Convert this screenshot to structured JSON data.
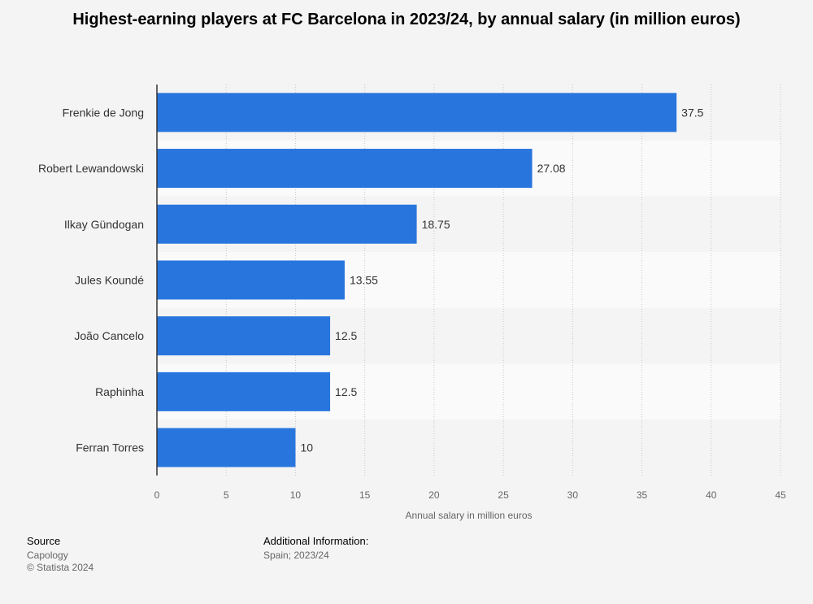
{
  "chart_data": {
    "type": "bar",
    "orientation": "horizontal",
    "title": "Highest-earning players at FC Barcelona in 2023/24, by annual salary (in million euros)",
    "xlabel": "Annual salary in million euros",
    "categories": [
      "Frenkie de Jong",
      "Robert Lewandowski",
      "Ilkay Gündogan",
      "Jules Koundé",
      "João Cancelo",
      "Raphinha",
      "Ferran Torres"
    ],
    "values": [
      37.5,
      27.08,
      18.75,
      13.55,
      12.5,
      12.5,
      10
    ],
    "value_labels": [
      "37.5",
      "27.08",
      "18.75",
      "13.55",
      "12.5",
      "12.5",
      "10"
    ],
    "xlim": [
      0,
      45
    ],
    "ticks": [
      0,
      5,
      10,
      15,
      20,
      25,
      30,
      35,
      40,
      45
    ],
    "tick_labels": [
      "0",
      "5",
      "10",
      "15",
      "20",
      "25",
      "30",
      "35",
      "40",
      "45"
    ],
    "grid": true,
    "bar_color": "#2876dd"
  },
  "footer": {
    "source_label": "Source",
    "source_lines": [
      "Capology",
      "© Statista 2024"
    ],
    "additional_label": "Additional Information:",
    "additional_text": "Spain; 2023/24"
  }
}
